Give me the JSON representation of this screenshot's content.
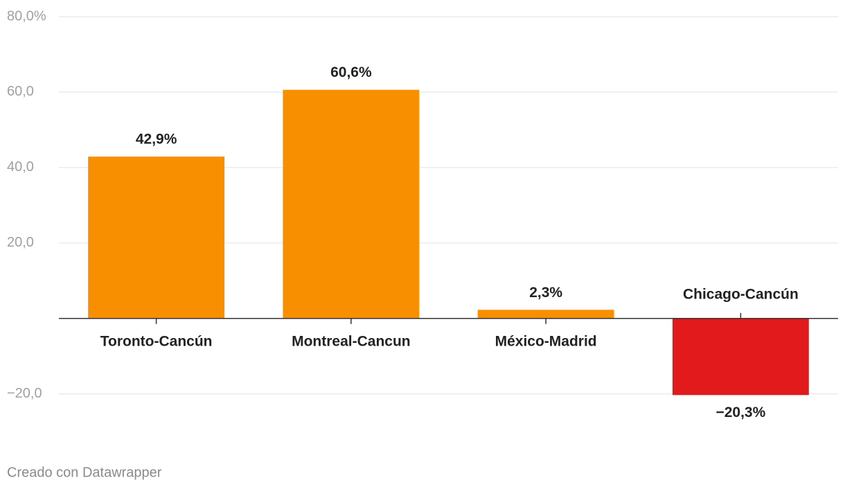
{
  "chart_data": {
    "type": "bar",
    "categories": [
      "Toronto-Cancún",
      "Montreal-Cancun",
      "México-Madrid",
      "Chicago-Cancún"
    ],
    "values": [
      42.9,
      60.6,
      2.3,
      -20.3
    ],
    "value_labels": [
      "42,9%",
      "60,6%",
      "2,3%",
      "−20,3%"
    ],
    "colors": [
      "#f78f00",
      "#f78f00",
      "#f78f00",
      "#e31a1c"
    ],
    "ylim": [
      -25,
      80
    ],
    "yticks": [
      {
        "value": 80,
        "label": "80,0%"
      },
      {
        "value": 60,
        "label": "60,0"
      },
      {
        "value": 40,
        "label": "40,0"
      },
      {
        "value": 20,
        "label": "20,0"
      },
      {
        "value": -20,
        "label": "−20,0"
      }
    ],
    "grid": true,
    "footer": "Creado con Datawrapper"
  }
}
